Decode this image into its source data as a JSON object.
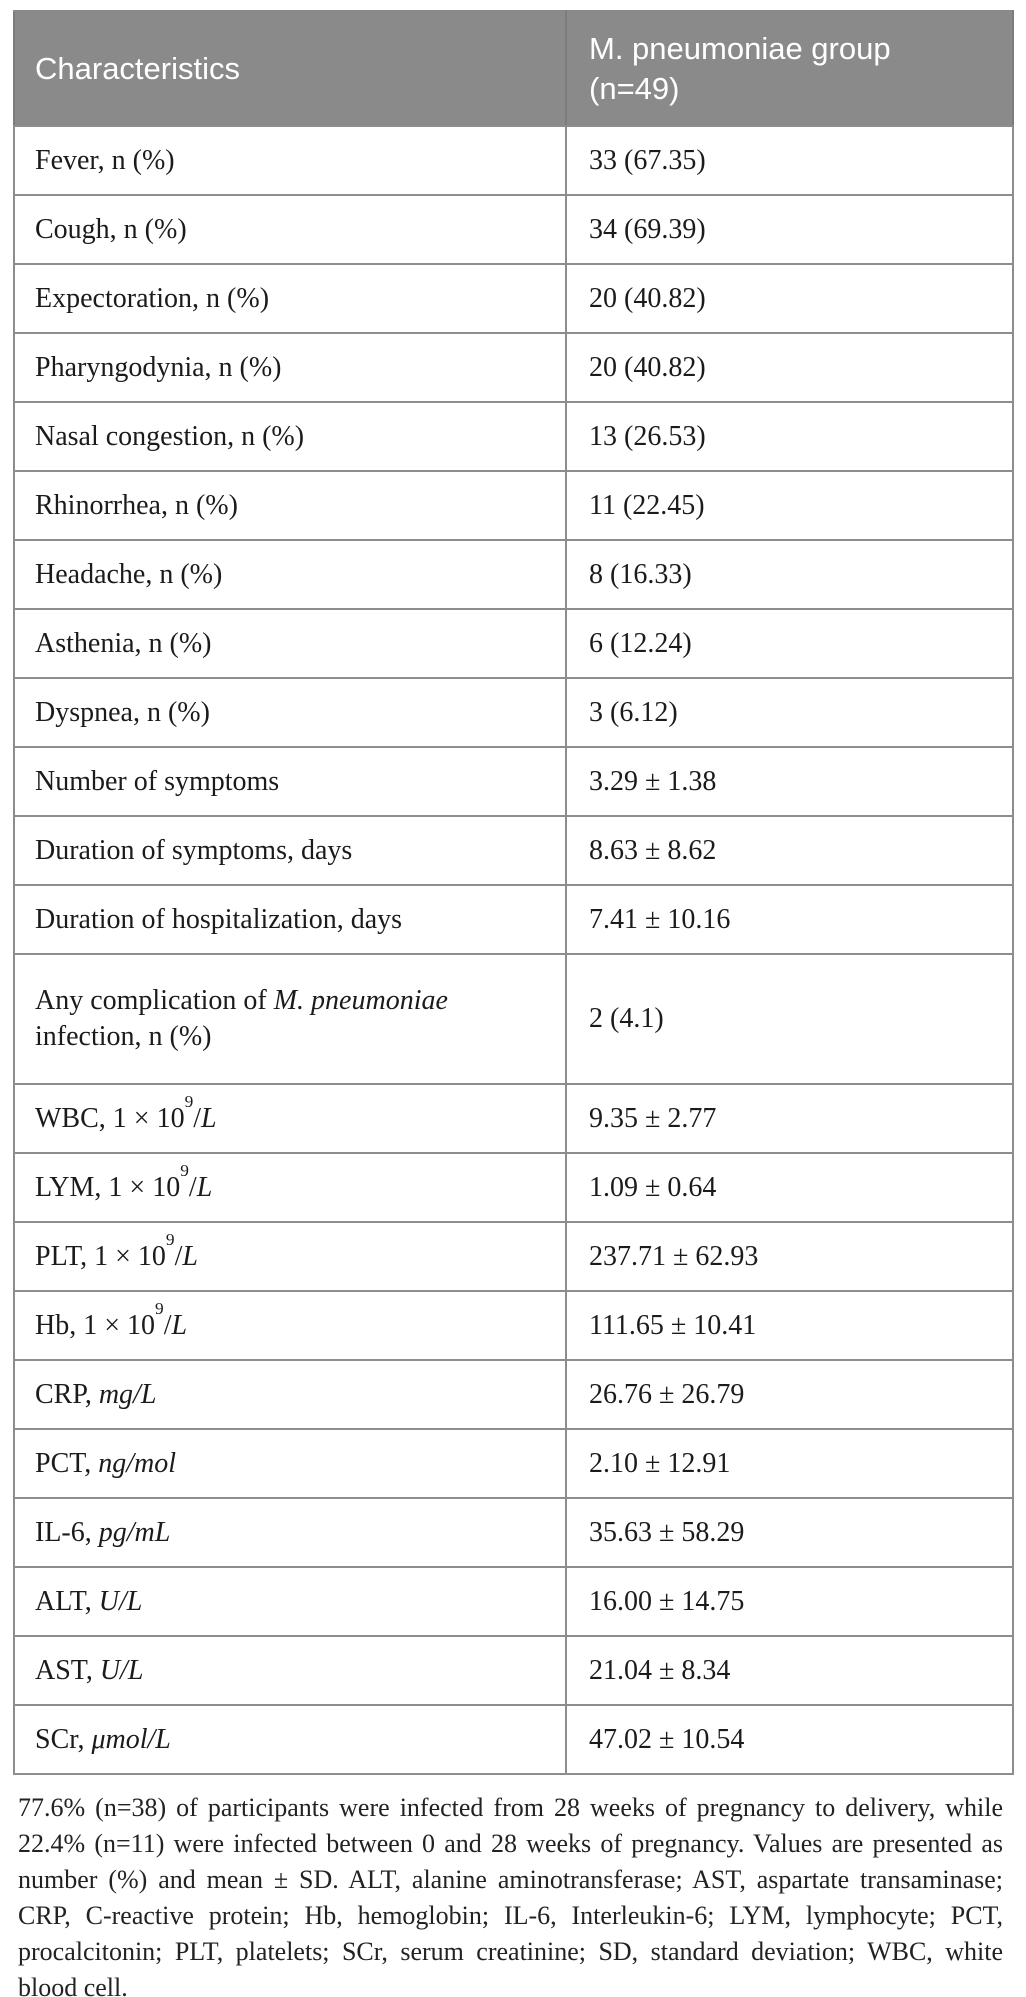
{
  "header": {
    "col1": "Characteristics",
    "col2_line1": "M. pneumoniae group",
    "col2_line2": "(n=49)"
  },
  "rows": [
    {
      "label": [
        {
          "t": "Fever, n (%)"
        }
      ],
      "value": "33 (67.35)"
    },
    {
      "label": [
        {
          "t": "Cough, n (%)"
        }
      ],
      "value": "34 (69.39)"
    },
    {
      "label": [
        {
          "t": "Expectoration, n (%)"
        }
      ],
      "value": "20 (40.82)"
    },
    {
      "label": [
        {
          "t": "Pharyngodynia, n (%)"
        }
      ],
      "value": "20 (40.82)"
    },
    {
      "label": [
        {
          "t": "Nasal congestion, n (%)"
        }
      ],
      "value": "13 (26.53)"
    },
    {
      "label": [
        {
          "t": "Rhinorrhea, n (%)"
        }
      ],
      "value": "11 (22.45)"
    },
    {
      "label": [
        {
          "t": "Headache, n (%)"
        }
      ],
      "value": "8 (16.33)"
    },
    {
      "label": [
        {
          "t": "Asthenia, n (%)"
        }
      ],
      "value": "6 (12.24)"
    },
    {
      "label": [
        {
          "t": "Dyspnea, n (%)"
        }
      ],
      "value": "3 (6.12)"
    },
    {
      "label": [
        {
          "t": "Number of symptoms"
        }
      ],
      "value": "3.29 ± 1.38"
    },
    {
      "label": [
        {
          "t": "Duration of symptoms, days"
        }
      ],
      "value": "8.63 ± 8.62"
    },
    {
      "label": [
        {
          "t": "Duration of hospitalization, days"
        }
      ],
      "value": "7.41 ± 10.16"
    },
    {
      "label": [
        {
          "t": "Any complication of "
        },
        {
          "t": "M. pneumoniae",
          "i": true
        },
        {
          "t": " infection, n (%)"
        }
      ],
      "value": "2 (4.1)",
      "tall": true
    },
    {
      "label": [
        {
          "t": "WBC, 1 × 10"
        },
        {
          "t": "9",
          "sup": true
        },
        {
          "t": "/"
        },
        {
          "t": "L",
          "i": true
        }
      ],
      "value": "9.35 ± 2.77"
    },
    {
      "label": [
        {
          "t": "LYM, 1 × 10"
        },
        {
          "t": "9",
          "sup": true
        },
        {
          "t": "/"
        },
        {
          "t": "L",
          "i": true
        }
      ],
      "value": "1.09 ± 0.64"
    },
    {
      "label": [
        {
          "t": "PLT, 1 × 10"
        },
        {
          "t": "9",
          "sup": true
        },
        {
          "t": "/"
        },
        {
          "t": "L",
          "i": true
        }
      ],
      "value": "237.71 ± 62.93"
    },
    {
      "label": [
        {
          "t": "Hb, 1 × 10"
        },
        {
          "t": "9",
          "sup": true
        },
        {
          "t": "/"
        },
        {
          "t": "L",
          "i": true
        }
      ],
      "value": "111.65 ± 10.41"
    },
    {
      "label": [
        {
          "t": "CRP, "
        },
        {
          "t": "mg/L",
          "i": true
        }
      ],
      "value": "26.76 ± 26.79"
    },
    {
      "label": [
        {
          "t": "PCT, "
        },
        {
          "t": "ng/mol",
          "i": true
        }
      ],
      "value": "2.10 ± 12.91"
    },
    {
      "label": [
        {
          "t": "IL-6, "
        },
        {
          "t": "pg/mL",
          "i": true
        }
      ],
      "value": "35.63 ± 58.29"
    },
    {
      "label": [
        {
          "t": "ALT, "
        },
        {
          "t": "U/L",
          "i": true
        }
      ],
      "value": "16.00 ± 14.75"
    },
    {
      "label": [
        {
          "t": "AST, "
        },
        {
          "t": "U/L",
          "i": true
        }
      ],
      "value": "21.04 ± 8.34"
    },
    {
      "label": [
        {
          "t": "SCr, "
        },
        {
          "t": "μmol/L",
          "i": true
        }
      ],
      "value": "47.02 ± 10.54"
    }
  ],
  "footnote": "77.6% (n=38) of participants were infected from 28 weeks of pregnancy to delivery, while 22.4% (n=11) were infected between 0 and 28 weeks of pregnancy. Values are presented as number (%) and mean ± SD. ALT, alanine aminotransferase; AST, aspartate transaminase; CRP, C-reactive protein; Hb, hemoglobin; IL-6, Interleukin-6; LYM, lymphocyte; PCT, procalcitonin; PLT, platelets; SCr, serum creatinine; SD, standard deviation; WBC, white blood cell.",
  "colors": {
    "header_bg": "#8a8a8a",
    "header_text": "#ffffff",
    "border": "#8d8d8d",
    "body_text": "#1b1b1b"
  }
}
